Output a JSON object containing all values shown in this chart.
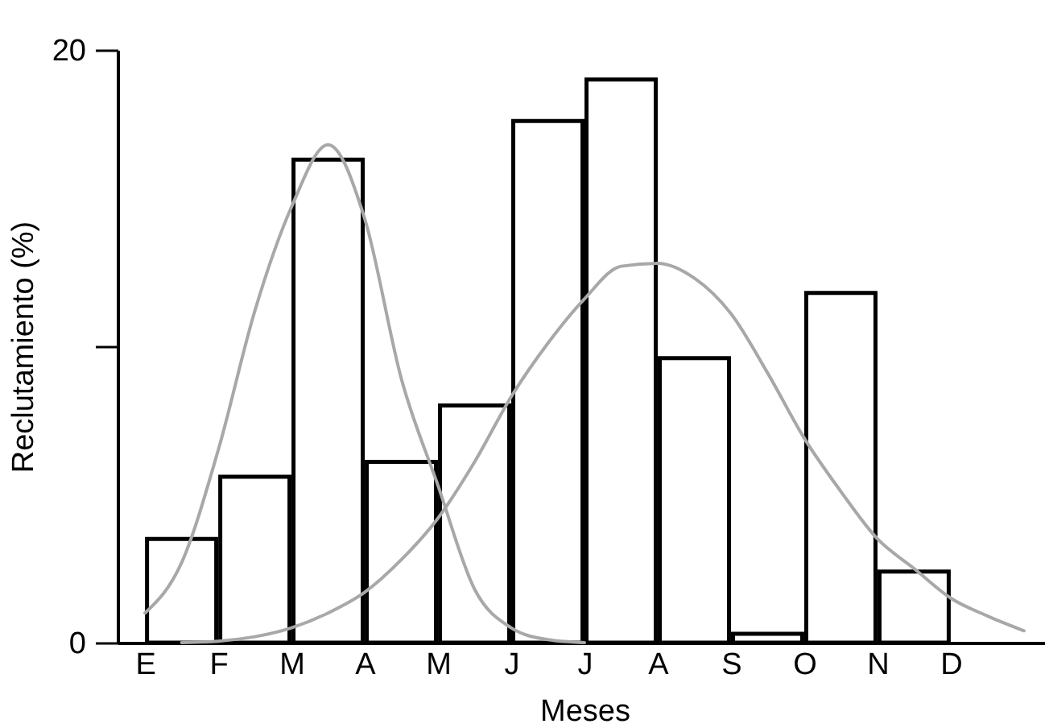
{
  "chart_data": {
    "type": "bar",
    "xlabel": "Meses",
    "ylabel": "Reclutamiento (%)",
    "categories": [
      "E",
      null,
      "F",
      null,
      "M",
      null,
      "A",
      null,
      "M",
      null,
      "J",
      null,
      "J",
      null,
      "A",
      null,
      "S",
      null,
      "O",
      null,
      "N",
      null,
      "D",
      null,
      null
    ],
    "ylim": [
      0,
      20
    ],
    "yticks": [
      0,
      {
        "value": 10,
        "label": null
      },
      20
    ],
    "grid": false,
    "series": [
      {
        "color": "#000000",
        "values": [
          null,
          3.5,
          null,
          5.6,
          null,
          16.3,
          null,
          6.1,
          null,
          8.0,
          null,
          17.6,
          null,
          19.0,
          null,
          9.6,
          null,
          0.3,
          null,
          11.8,
          null,
          2.4,
          null,
          null,
          null
        ]
      },
      {
        "type": "line",
        "color": "#a8a8a8",
        "values": [
          1.0,
          2.7,
          6.5,
          11.2,
          14.7,
          16.8,
          14.3,
          8.9,
          5.3,
          1.8,
          0.5,
          0.1,
          0,
          null,
          null,
          null,
          null,
          null,
          null,
          null,
          null,
          null,
          null,
          null,
          null
        ]
      },
      {
        "type": "line",
        "color": "#a8a8a8",
        "values": [
          null,
          0,
          0.05,
          0.2,
          0.5,
          1.0,
          1.7,
          2.8,
          4.2,
          6.1,
          8.3,
          10.1,
          11.6,
          12.7,
          12.8,
          12.3,
          11.1,
          9.1,
          6.9,
          5.1,
          3.5,
          2.5,
          1.5,
          0.9,
          0.4
        ]
      }
    ]
  }
}
